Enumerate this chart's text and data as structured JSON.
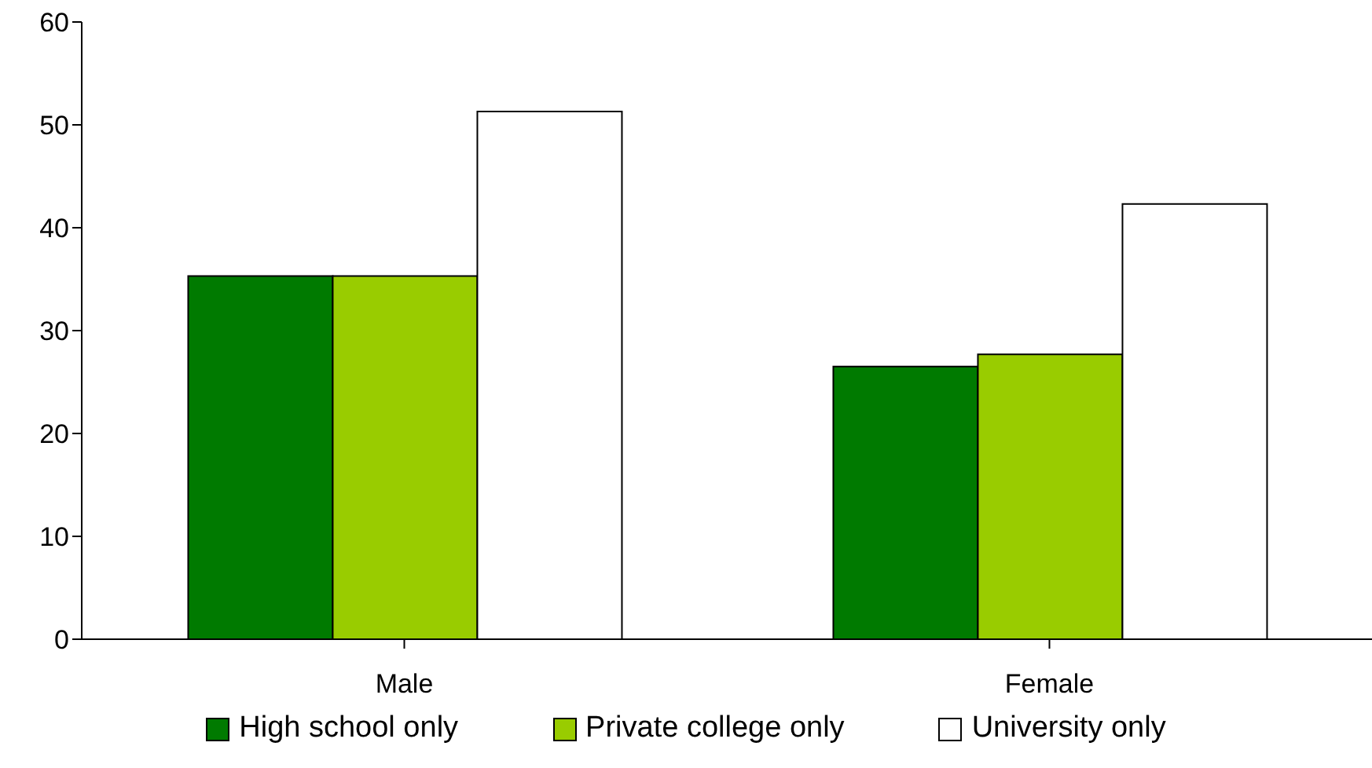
{
  "chart_data": {
    "type": "bar",
    "categories": [
      "Male",
      "Female"
    ],
    "series": [
      {
        "name": "High school only",
        "color": "#007a00",
        "values": [
          35.3,
          26.5
        ]
      },
      {
        "name": "Private college only",
        "color": "#99cc00",
        "values": [
          35.3,
          27.7
        ]
      },
      {
        "name": "University only",
        "color": "#ffffff",
        "values": [
          51.3,
          42.3
        ]
      }
    ],
    "ylim": [
      0,
      60
    ],
    "yticks": [
      0,
      10,
      20,
      30,
      40,
      50,
      60
    ],
    "grid": false,
    "legend": "bottom"
  }
}
